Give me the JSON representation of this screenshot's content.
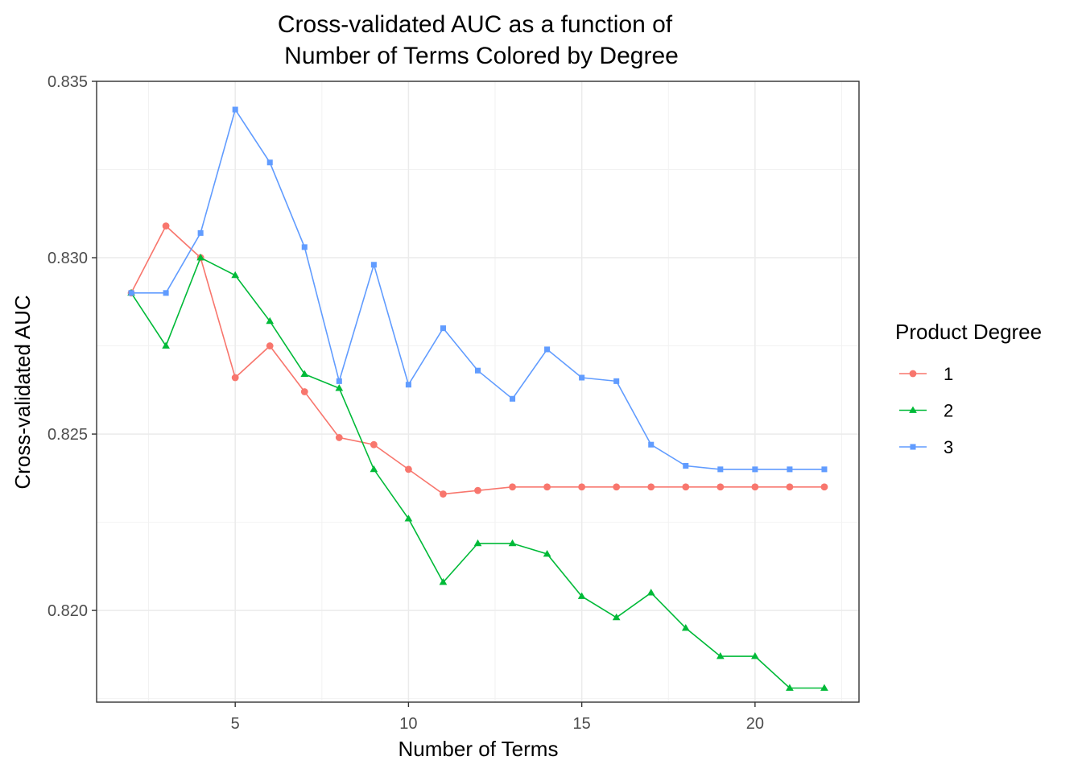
{
  "chart_data": {
    "type": "line",
    "title_lines": [
      "Cross-validated AUC as a function of",
      "Number of Terms Colored by Degree"
    ],
    "xlabel": "Number of Terms",
    "ylabel": "Cross-validated AUC",
    "xlim": [
      1.0,
      23.0
    ],
    "ylim": [
      0.8174,
      0.835
    ],
    "x_ticks": [
      5,
      10,
      15,
      20
    ],
    "x_tick_labels": [
      "5",
      "10",
      "15",
      "20"
    ],
    "y_ticks": [
      0.82,
      0.825,
      0.83,
      0.835
    ],
    "y_tick_labels": [
      "0.820",
      "0.825",
      "0.830",
      "0.835"
    ],
    "grid": true,
    "legend_title": "Product Degree",
    "legend_position": "right",
    "x": [
      2,
      3,
      4,
      5,
      6,
      7,
      8,
      9,
      10,
      11,
      12,
      13,
      14,
      15,
      16,
      17,
      18,
      19,
      20,
      21,
      22
    ],
    "series": [
      {
        "name": "1",
        "color": "#F8766D",
        "marker": "circle",
        "values": [
          0.829,
          0.8309,
          0.83,
          0.8266,
          0.8275,
          0.8262,
          0.8249,
          0.8247,
          0.824,
          0.8233,
          0.8234,
          0.8235,
          0.8235,
          0.8235,
          0.8235,
          0.8235,
          0.8235,
          0.8235,
          0.8235,
          0.8235,
          0.8235
        ]
      },
      {
        "name": "2",
        "color": "#00BA38",
        "marker": "triangle",
        "values": [
          0.829,
          0.8275,
          0.83,
          0.8295,
          0.8282,
          0.8267,
          0.8263,
          0.824,
          0.8226,
          0.8208,
          0.8219,
          0.8219,
          0.8216,
          0.8204,
          0.8198,
          0.8205,
          0.8195,
          0.8187,
          0.8187,
          0.8178,
          0.8178
        ]
      },
      {
        "name": "3",
        "color": "#619CFF",
        "marker": "square",
        "values": [
          0.829,
          0.829,
          0.8307,
          0.8342,
          0.8327,
          0.8303,
          0.8265,
          0.8298,
          0.8264,
          0.828,
          0.8268,
          0.826,
          0.8274,
          0.8266,
          0.8265,
          0.8247,
          0.8241,
          0.824,
          0.824,
          0.824,
          0.824
        ]
      }
    ]
  }
}
